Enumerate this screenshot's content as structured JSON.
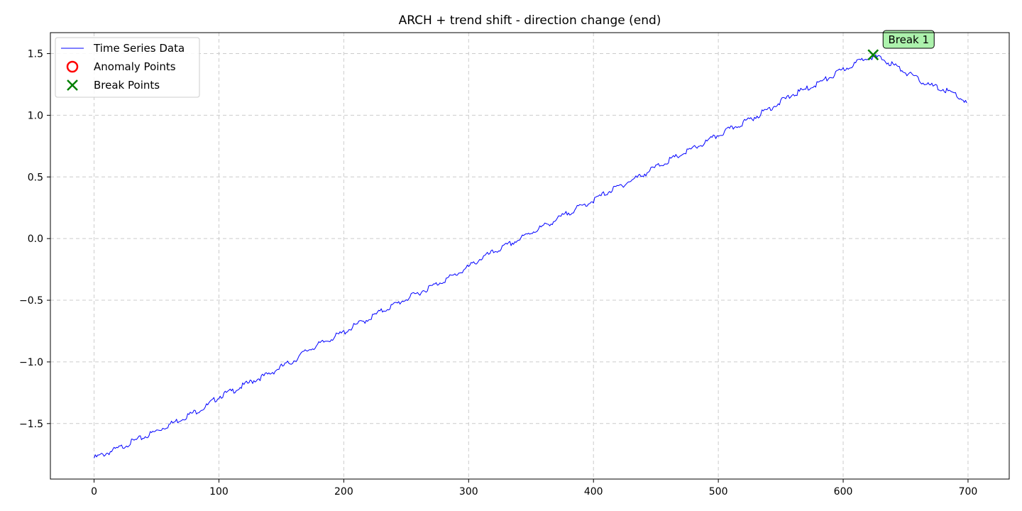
{
  "chart_data": {
    "type": "line",
    "title": "ARCH + trend shift - direction change (end)",
    "xlabel": "",
    "ylabel": "",
    "xlim": [
      -35,
      733
    ],
    "ylim": [
      -1.95,
      1.67
    ],
    "x_ticks": [
      0,
      100,
      200,
      300,
      400,
      500,
      600,
      700
    ],
    "y_ticks": [
      -1.5,
      -1.0,
      -0.5,
      0.0,
      0.5,
      1.0,
      1.5
    ],
    "x_tick_labels": [
      "0",
      "100",
      "200",
      "300",
      "400",
      "500",
      "600",
      "700"
    ],
    "y_tick_labels": [
      "−1.5",
      "−1.0",
      "−0.5",
      "0.0",
      "0.5",
      "1.0",
      "1.5"
    ],
    "grid": true,
    "legend_position": "top-left",
    "legend": [
      {
        "label": "Time Series Data",
        "marker": "line",
        "color": "#0000ff"
      },
      {
        "label": "Anomaly Points",
        "marker": "circle",
        "color": "#ff0000"
      },
      {
        "label": "Break Points",
        "marker": "x",
        "color": "#008000"
      }
    ],
    "series": [
      {
        "name": "Time Series Data",
        "color": "#0000ff",
        "x": [
          0,
          10,
          20,
          30,
          40,
          50,
          60,
          70,
          80,
          90,
          100,
          110,
          120,
          130,
          140,
          150,
          160,
          170,
          180,
          190,
          200,
          210,
          220,
          230,
          240,
          250,
          260,
          270,
          280,
          290,
          300,
          310,
          320,
          330,
          340,
          350,
          360,
          370,
          380,
          390,
          400,
          410,
          420,
          430,
          440,
          450,
          460,
          470,
          480,
          490,
          500,
          510,
          520,
          530,
          540,
          550,
          560,
          570,
          580,
          590,
          600,
          610,
          620,
          625,
          630,
          640,
          650,
          660,
          670,
          680,
          690,
          699
        ],
        "y": [
          -1.78,
          -1.74,
          -1.7,
          -1.65,
          -1.61,
          -1.56,
          -1.51,
          -1.46,
          -1.41,
          -1.36,
          -1.28,
          -1.24,
          -1.19,
          -1.14,
          -1.1,
          -1.04,
          -0.99,
          -0.91,
          -0.86,
          -0.81,
          -0.76,
          -0.7,
          -0.65,
          -0.59,
          -0.54,
          -0.49,
          -0.44,
          -0.39,
          -0.34,
          -0.29,
          -0.23,
          -0.16,
          -0.11,
          -0.06,
          -0.01,
          0.05,
          0.1,
          0.15,
          0.21,
          0.26,
          0.31,
          0.37,
          0.42,
          0.47,
          0.52,
          0.58,
          0.63,
          0.68,
          0.73,
          0.78,
          0.84,
          0.89,
          0.94,
          0.99,
          1.05,
          1.11,
          1.17,
          1.21,
          1.26,
          1.31,
          1.37,
          1.42,
          1.48,
          1.47,
          1.46,
          1.41,
          1.35,
          1.29,
          1.24,
          1.21,
          1.17,
          1.1
        ]
      }
    ],
    "anomaly_points": [],
    "break_points": [
      {
        "x": 624,
        "y": 1.49,
        "label": "Break 1"
      }
    ]
  }
}
